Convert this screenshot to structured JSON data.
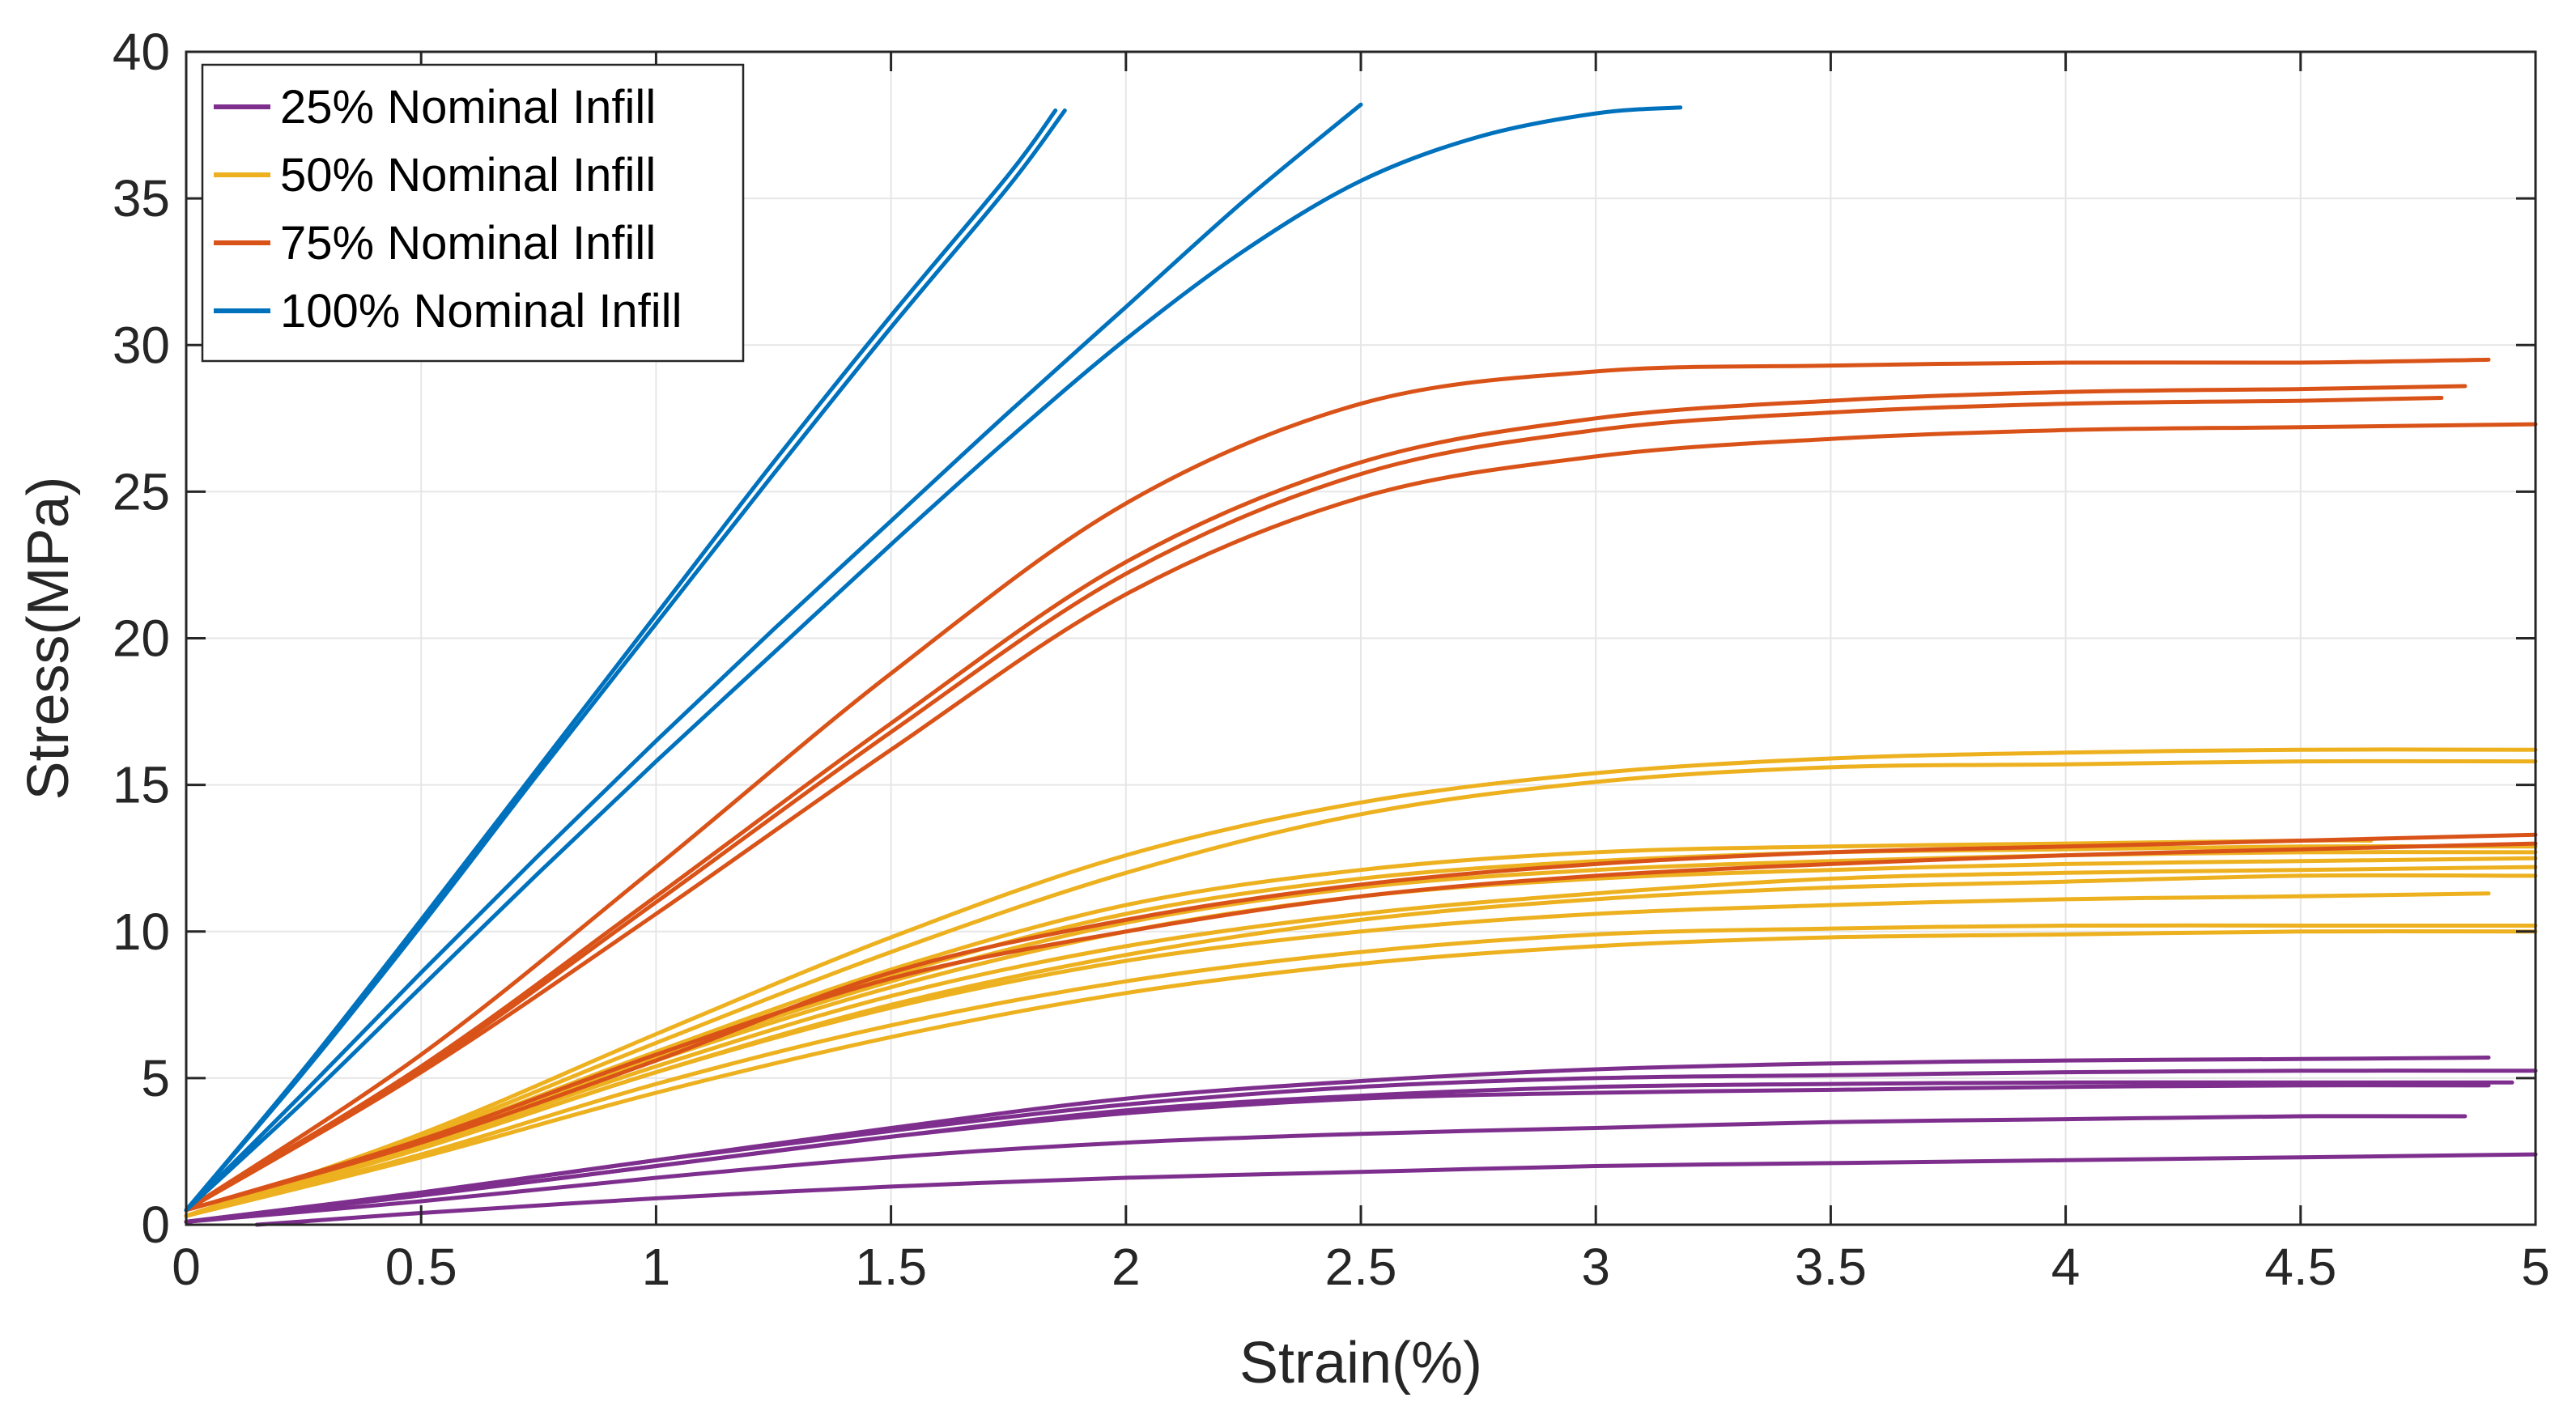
{
  "chart_data": {
    "type": "line",
    "title": "",
    "xlabel": "Strain(%)",
    "ylabel": "Stress(MPa)",
    "xlim": [
      0,
      5
    ],
    "ylim": [
      0,
      40
    ],
    "xticks": [
      0,
      0.5,
      1,
      1.5,
      2,
      2.5,
      3,
      3.5,
      4,
      4.5,
      5
    ],
    "yticks": [
      0,
      5,
      10,
      15,
      20,
      25,
      30,
      35,
      40
    ],
    "xtick_labels": [
      "0",
      "0.5",
      "1",
      "1.5",
      "2",
      "2.5",
      "3",
      "3.5",
      "4",
      "4.5",
      "5"
    ],
    "ytick_labels": [
      "0",
      "5",
      "10",
      "15",
      "20",
      "25",
      "30",
      "35",
      "40"
    ],
    "grid": true,
    "legend_position": "top-left",
    "legend": [
      {
        "label": "25% Nominal Infill",
        "color": "#7E2F8E"
      },
      {
        "label": "50% Nominal Infill",
        "color": "#EDB120"
      },
      {
        "label": "75% Nominal Infill",
        "color": "#D95319"
      },
      {
        "label": "100% Nominal Infill",
        "color": "#0072BD"
      }
    ],
    "series": [
      {
        "name": "25% Nominal Infill",
        "color": "#7E2F8E",
        "curves": [
          {
            "x": [
              0.15,
              0.5,
              1.0,
              1.5,
              2.0,
              2.5,
              3.0,
              3.5,
              4.0,
              4.5,
              5.0
            ],
            "y": [
              0.0,
              0.4,
              0.9,
              1.3,
              1.6,
              1.8,
              2.0,
              2.1,
              2.2,
              2.3,
              2.4
            ]
          },
          {
            "x": [
              0.0,
              0.5,
              1.0,
              1.5,
              2.0,
              2.5,
              3.0,
              3.5,
              4.0,
              4.5,
              4.85
            ],
            "y": [
              0.1,
              0.8,
              1.6,
              2.3,
              2.8,
              3.1,
              3.3,
              3.5,
              3.6,
              3.7,
              3.7
            ]
          },
          {
            "x": [
              0.0,
              0.5,
              1.0,
              1.5,
              2.0,
              2.5,
              3.0,
              3.5,
              4.0,
              4.5,
              4.9
            ],
            "y": [
              0.1,
              1.0,
              2.0,
              3.0,
              3.8,
              4.3,
              4.5,
              4.6,
              4.7,
              4.75,
              4.75
            ]
          },
          {
            "x": [
              0.0,
              0.5,
              1.0,
              1.5,
              2.0,
              2.5,
              3.0,
              3.5,
              4.0,
              4.5,
              4.95
            ],
            "y": [
              0.1,
              1.0,
              2.0,
              3.0,
              3.9,
              4.4,
              4.7,
              4.8,
              4.85,
              4.85,
              4.85
            ]
          },
          {
            "x": [
              0.0,
              0.5,
              1.0,
              1.5,
              2.0,
              2.5,
              3.0,
              3.5,
              4.0,
              4.5,
              5.0
            ],
            "y": [
              0.1,
              1.1,
              2.2,
              3.2,
              4.1,
              4.7,
              5.0,
              5.1,
              5.2,
              5.25,
              5.25
            ]
          },
          {
            "x": [
              0.0,
              0.5,
              1.0,
              1.5,
              2.0,
              2.5,
              3.0,
              3.5,
              4.0,
              4.5,
              4.9
            ],
            "y": [
              0.1,
              1.1,
              2.2,
              3.3,
              4.3,
              4.9,
              5.3,
              5.5,
              5.6,
              5.65,
              5.7
            ]
          }
        ]
      },
      {
        "name": "50% Nominal Infill",
        "color": "#EDB120",
        "curves": [
          {
            "x": [
              0.0,
              0.5,
              1.0,
              1.5,
              2.0,
              2.5,
              3.0,
              3.5,
              4.0,
              4.5,
              5.0
            ],
            "y": [
              0.3,
              2.3,
              4.5,
              6.4,
              7.9,
              8.9,
              9.5,
              9.8,
              9.9,
              10.0,
              10.0
            ]
          },
          {
            "x": [
              0.0,
              0.5,
              1.0,
              1.5,
              2.0,
              2.5,
              3.0,
              3.5,
              4.0,
              4.5,
              5.0
            ],
            "y": [
              0.3,
              2.4,
              4.8,
              6.8,
              8.3,
              9.3,
              9.9,
              10.1,
              10.2,
              10.2,
              10.2
            ]
          },
          {
            "x": [
              0.0,
              0.5,
              1.0,
              1.5,
              2.0,
              2.5,
              3.0,
              3.5,
              4.0,
              4.5,
              4.9
            ],
            "y": [
              0.3,
              2.6,
              5.2,
              7.4,
              9.0,
              10.0,
              10.6,
              10.9,
              11.1,
              11.2,
              11.3
            ]
          },
          {
            "x": [
              0.0,
              0.5,
              1.0,
              1.5,
              2.0,
              2.5,
              3.0,
              3.5,
              4.0,
              4.5,
              5.0
            ],
            "y": [
              0.3,
              2.6,
              5.2,
              7.5,
              9.2,
              10.4,
              11.1,
              11.5,
              11.7,
              11.9,
              11.9
            ]
          },
          {
            "x": [
              0.0,
              0.5,
              1.0,
              1.5,
              2.0,
              2.5,
              3.0,
              3.5,
              4.0,
              4.5,
              5.0
            ],
            "y": [
              0.3,
              2.7,
              5.4,
              7.8,
              9.5,
              10.6,
              11.3,
              11.8,
              12.0,
              12.1,
              12.2
            ]
          },
          {
            "x": [
              0.0,
              0.5,
              1.0,
              1.5,
              2.0,
              2.5,
              3.0,
              3.5,
              4.0,
              4.5,
              5.0
            ],
            "y": [
              0.3,
              2.8,
              5.6,
              8.1,
              10.0,
              11.2,
              11.8,
              12.1,
              12.3,
              12.4,
              12.5
            ]
          },
          {
            "x": [
              0.0,
              0.5,
              1.0,
              1.5,
              2.0,
              2.5,
              3.0,
              3.5,
              4.0,
              4.5,
              5.0
            ],
            "y": [
              0.3,
              2.8,
              5.7,
              8.3,
              10.3,
              11.5,
              12.1,
              12.4,
              12.6,
              12.7,
              12.7
            ]
          },
          {
            "x": [
              0.0,
              0.5,
              1.0,
              1.5,
              2.0,
              2.5,
              3.0,
              3.5,
              4.0,
              4.5,
              5.0
            ],
            "y": [
              0.3,
              2.9,
              5.8,
              8.5,
              10.6,
              11.8,
              12.4,
              12.7,
              12.8,
              12.9,
              12.9
            ]
          },
          {
            "x": [
              0.0,
              0.5,
              1.0,
              1.5,
              2.0,
              2.5,
              3.0,
              3.5,
              4.0,
              4.5,
              4.65
            ],
            "y": [
              0.3,
              2.9,
              5.9,
              8.7,
              10.9,
              12.1,
              12.7,
              12.9,
              13.0,
              13.1,
              13.1
            ]
          },
          {
            "x": [
              0.0,
              0.5,
              1.0,
              1.5,
              2.0,
              2.5,
              3.0,
              3.5,
              4.0,
              4.5,
              5.0
            ],
            "y": [
              0.3,
              3.0,
              6.2,
              9.3,
              12.0,
              14.0,
              15.1,
              15.6,
              15.7,
              15.8,
              15.8
            ]
          },
          {
            "x": [
              0.0,
              0.5,
              1.0,
              1.5,
              2.0,
              2.5,
              3.0,
              3.5,
              4.0,
              4.5,
              5.0
            ],
            "y": [
              0.3,
              3.1,
              6.5,
              9.8,
              12.6,
              14.4,
              15.4,
              15.9,
              16.1,
              16.2,
              16.2
            ]
          }
        ]
      },
      {
        "name": "75% Nominal Infill",
        "color": "#D95319",
        "curves": [
          {
            "x": [
              0.0,
              0.5,
              1.0,
              1.5,
              2.0,
              2.5,
              3.0,
              3.5,
              4.0,
              4.5,
              5.0
            ],
            "y": [
              0.5,
              2.9,
              5.8,
              8.4,
              10.0,
              11.2,
              11.9,
              12.3,
              12.6,
              12.8,
              13.0
            ]
          },
          {
            "x": [
              0.0,
              0.5,
              1.0,
              1.5,
              2.0,
              2.5,
              3.0,
              3.5,
              4.0,
              4.5,
              5.0
            ],
            "y": [
              0.5,
              2.8,
              5.6,
              8.6,
              10.4,
              11.6,
              12.3,
              12.7,
              12.9,
              13.1,
              13.3
            ]
          },
          {
            "x": [
              0.0,
              0.5,
              1.0,
              1.5,
              2.0,
              2.5,
              3.0,
              3.5,
              4.0,
              4.5,
              5.0
            ],
            "y": [
              0.5,
              5.2,
              10.6,
              16.2,
              21.5,
              24.8,
              26.2,
              26.8,
              27.1,
              27.2,
              27.3
            ]
          },
          {
            "x": [
              0.0,
              0.5,
              1.0,
              1.5,
              2.0,
              2.5,
              3.0,
              3.5,
              4.0,
              4.5,
              4.8
            ],
            "y": [
              0.5,
              5.3,
              11.0,
              16.8,
              22.2,
              25.6,
              27.1,
              27.7,
              28.0,
              28.1,
              28.2
            ]
          },
          {
            "x": [
              0.0,
              0.5,
              1.0,
              1.5,
              2.0,
              2.5,
              3.0,
              3.5,
              4.0,
              4.5,
              4.85
            ],
            "y": [
              0.5,
              5.4,
              11.2,
              17.1,
              22.6,
              26.0,
              27.5,
              28.1,
              28.4,
              28.5,
              28.6
            ]
          },
          {
            "x": [
              0.0,
              0.5,
              1.0,
              1.5,
              2.0,
              2.5,
              3.0,
              3.5,
              4.0,
              4.5,
              4.9
            ],
            "y": [
              0.5,
              5.8,
              12.2,
              18.8,
              24.6,
              28.0,
              29.1,
              29.3,
              29.4,
              29.4,
              29.5
            ]
          }
        ]
      },
      {
        "name": "100% Nominal Infill",
        "color": "#0072BD",
        "curves": [
          {
            "x": [
              0.0,
              0.25,
              0.5,
              0.75,
              1.0,
              1.25,
              1.5,
              1.75,
              1.85
            ],
            "y": [
              0.5,
              5.3,
              10.4,
              15.6,
              20.8,
              26.0,
              31.0,
              35.8,
              38.0
            ]
          },
          {
            "x": [
              0.0,
              0.25,
              0.5,
              0.75,
              1.0,
              1.25,
              1.5,
              1.75,
              1.87
            ],
            "y": [
              0.5,
              5.2,
              10.2,
              15.4,
              20.5,
              25.6,
              30.6,
              35.4,
              38.0
            ]
          },
          {
            "x": [
              0.0,
              0.25,
              0.5,
              0.75,
              1.0,
              1.25,
              1.5,
              1.75,
              2.0,
              2.25,
              2.5
            ],
            "y": [
              0.5,
              4.5,
              8.6,
              12.6,
              16.5,
              20.3,
              24.0,
              27.7,
              31.3,
              34.9,
              38.2
            ]
          },
          {
            "x": [
              0.0,
              0.25,
              0.5,
              0.75,
              1.0,
              1.25,
              1.5,
              1.75,
              2.0,
              2.25,
              2.5,
              2.75,
              3.0,
              3.18
            ],
            "y": [
              0.5,
              4.2,
              8.1,
              12.0,
              15.8,
              19.5,
              23.2,
              26.8,
              30.2,
              33.2,
              35.6,
              37.1,
              37.9,
              38.1
            ]
          }
        ]
      }
    ]
  }
}
